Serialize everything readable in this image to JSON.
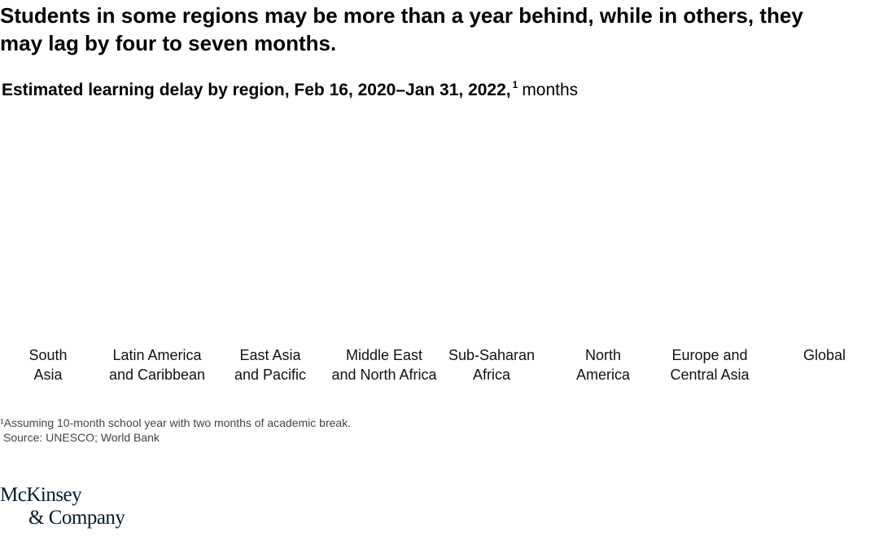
{
  "chart_data": {
    "type": "bar",
    "title": "Students in some regions may be more than a year behind, while in others, they may lag by four to seven months.",
    "subtitle": "Estimated learning delay by region, Feb 16, 2020–Jan 31, 2022,",
    "subtitle_marker": "1",
    "unit": "months",
    "categories": [
      [
        "South",
        "Asia"
      ],
      [
        "Latin America",
        "and Caribbean"
      ],
      [
        "East Asia",
        "and Pacific"
      ],
      [
        "Middle East",
        "and North Africa"
      ],
      [
        "Sub-Saharan",
        "Africa"
      ],
      [
        "North",
        "America"
      ],
      [
        "Europe and",
        "Central Asia"
      ],
      [
        "Global"
      ]
    ],
    "footnote": "¹Assuming 10-month school year with two months of academic break.",
    "source": "Source: UNESCO; World Bank",
    "logo": [
      "McKinsey",
      "& Company"
    ]
  }
}
